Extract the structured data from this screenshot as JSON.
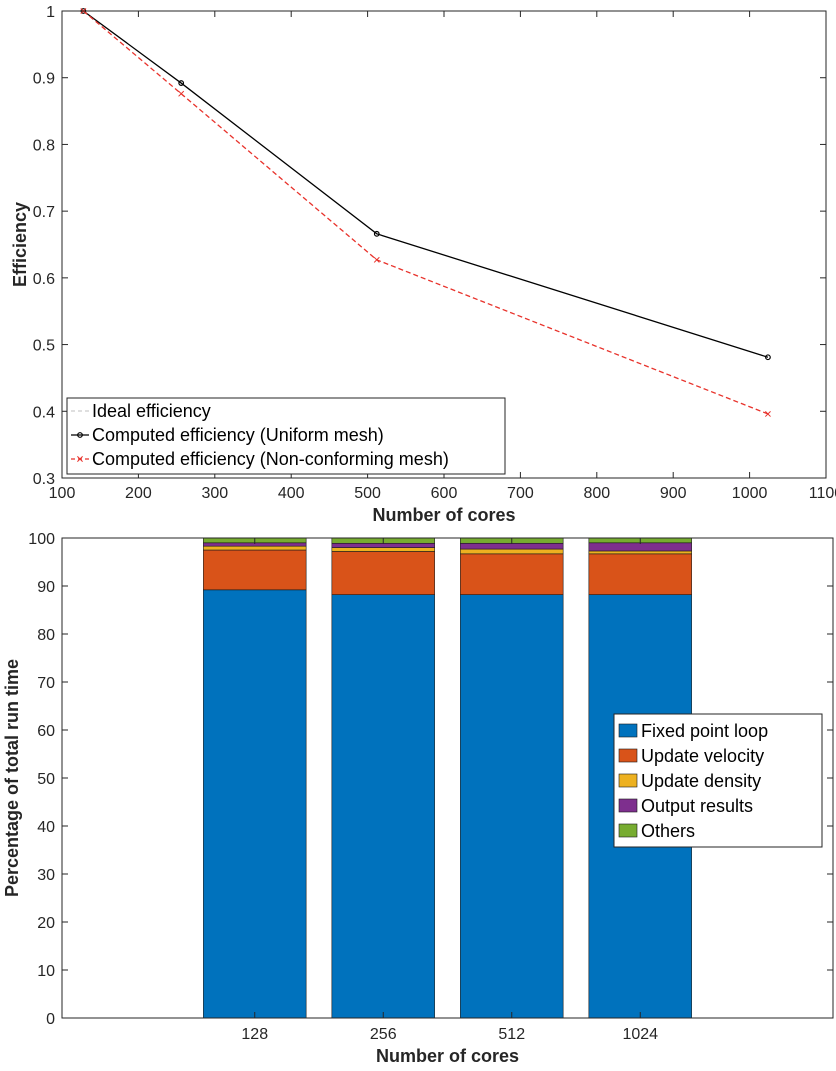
{
  "chart_data": [
    {
      "type": "line",
      "xlabel": "Number of cores",
      "ylabel": "Efficiency",
      "xlim": [
        100,
        1100
      ],
      "ylim": [
        0.3,
        1
      ],
      "xticks": [
        100,
        200,
        300,
        400,
        500,
        600,
        700,
        800,
        900,
        1000,
        1100
      ],
      "yticks": [
        0.3,
        0.4,
        0.5,
        0.6,
        0.7,
        0.8,
        0.9,
        1
      ],
      "x": [
        128,
        256,
        512,
        1024
      ],
      "series": [
        {
          "name": "Ideal efficiency",
          "values": [
            1,
            1,
            1,
            1
          ],
          "color": "#aaaaaa",
          "dash": "dashed",
          "marker": "none"
        },
        {
          "name": "Computed efficiency (Uniform mesh)",
          "values": [
            1,
            0.892,
            0.666,
            0.481
          ],
          "color": "#000000",
          "dash": "solid",
          "marker": "circle"
        },
        {
          "name": "Computed efficiency (Non-conforming mesh)",
          "values": [
            1,
            0.876,
            0.627,
            0.396
          ],
          "color": "#e8322b",
          "dash": "dashed",
          "marker": "x"
        }
      ],
      "legend_position": "bottom-left",
      "grid": false
    },
    {
      "type": "bar",
      "stacked": true,
      "xlabel": "Number of cores",
      "ylabel": "Percentage of total run time",
      "categories": [
        "128",
        "256",
        "512",
        "1024"
      ],
      "ylim": [
        0,
        100
      ],
      "yticks": [
        0,
        10,
        20,
        30,
        40,
        50,
        60,
        70,
        80,
        90,
        100
      ],
      "series": [
        {
          "name": "Fixed point loop",
          "values": [
            89.2,
            88.2,
            88.2,
            88.2
          ],
          "color": "#0072bd"
        },
        {
          "name": "Update velocity",
          "values": [
            8.3,
            9.0,
            8.5,
            8.5
          ],
          "color": "#d95319"
        },
        {
          "name": "Update density",
          "values": [
            0.8,
            0.8,
            1.0,
            0.6
          ],
          "color": "#edb120"
        },
        {
          "name": "Output results",
          "values": [
            0.7,
            0.9,
            1.2,
            1.7
          ],
          "color": "#7e2f8e"
        },
        {
          "name": "Others",
          "values": [
            1.0,
            1.1,
            1.1,
            1.0
          ],
          "color": "#77ac30"
        }
      ],
      "legend_position": "center-right",
      "grid": false
    }
  ]
}
